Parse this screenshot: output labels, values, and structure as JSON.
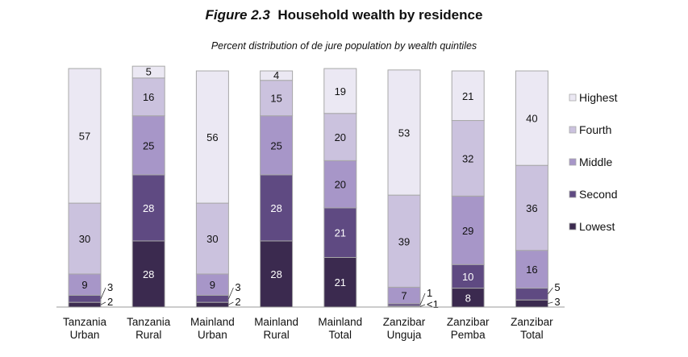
{
  "figure": {
    "label": "Figure 2.3",
    "title": "Household wealth by residence",
    "subtitle": "Percent distribution of de jure population by wealth quintiles"
  },
  "colors": {
    "Lowest": "#3b2a4f",
    "Second": "#5f4a82",
    "Middle": "#a796c8",
    "Fourth": "#cbc2de",
    "Highest": "#ebe8f3",
    "border": "#a8a8a8",
    "light_text": "#ffffff",
    "dark_text": "#111111"
  },
  "chart_data": {
    "type": "bar",
    "stacked": true,
    "categories": [
      [
        "Tanzania",
        "Urban"
      ],
      [
        "Tanzania",
        "Rural"
      ],
      [
        "Mainland",
        "Urban"
      ],
      [
        "Mainland",
        "Rural"
      ],
      [
        "Mainland",
        "Total"
      ],
      [
        "Zanzibar",
        "Unguja"
      ],
      [
        "Zanzibar",
        "Pemba"
      ],
      [
        "Zanzibar",
        "Total"
      ]
    ],
    "series": [
      {
        "name": "Lowest",
        "values": [
          2,
          28,
          2,
          28,
          21,
          0.4,
          8,
          3
        ],
        "labels": [
          "2",
          "28",
          "2",
          "28",
          "21",
          "<1",
          "8",
          "3"
        ]
      },
      {
        "name": "Second",
        "values": [
          3,
          28,
          3,
          28,
          21,
          1,
          10,
          5
        ],
        "labels": [
          "3",
          "28",
          "3",
          "28",
          "21",
          "1",
          "10",
          "5"
        ]
      },
      {
        "name": "Middle",
        "values": [
          9,
          25,
          9,
          25,
          20,
          7,
          29,
          16
        ],
        "labels": [
          "9",
          "25",
          "9",
          "25",
          "20",
          "7",
          "29",
          "16"
        ]
      },
      {
        "name": "Fourth",
        "values": [
          30,
          16,
          30,
          15,
          20,
          39,
          32,
          36
        ],
        "labels": [
          "30",
          "16",
          "30",
          "15",
          "20",
          "39",
          "32",
          "36"
        ]
      },
      {
        "name": "Highest",
        "values": [
          57,
          5,
          56,
          4,
          19,
          53,
          21,
          40
        ],
        "labels": [
          "57",
          "5",
          "56",
          "4",
          "19",
          "53",
          "21",
          "40"
        ]
      }
    ],
    "legend_order": [
      "Highest",
      "Fourth",
      "Middle",
      "Second",
      "Lowest"
    ],
    "legend_position": "right",
    "ylim": [
      0,
      100
    ],
    "grid": false
  }
}
